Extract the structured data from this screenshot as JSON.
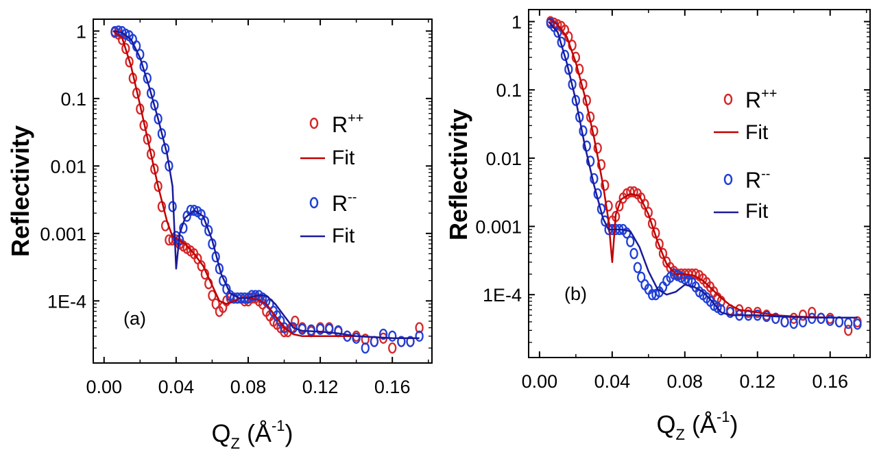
{
  "chart_data": [
    {
      "type": "scatter",
      "panel_label": "(a)",
      "xlabel_main": "Q",
      "xlabel_sub": "Z",
      "xlabel_unit": " (Å",
      "xlabel_exp": "-1",
      "xlabel_close": ")",
      "ylabel": "Reflectivity",
      "xlim": [
        -0.006,
        0.182
      ],
      "ylim": [
        1.2e-05,
        1.5
      ],
      "x_ticks": [
        0.0,
        0.04,
        0.08,
        0.12,
        0.16
      ],
      "x_tick_labels": [
        "0.00",
        "0.04",
        "0.08",
        "0.12",
        "0.16"
      ],
      "y_ticks": [
        1,
        0.1,
        0.01,
        0.001,
        0.0001
      ],
      "y_tick_labels": [
        "1",
        "0.1",
        "0.01",
        "0.001",
        "1E-4"
      ],
      "legend": [
        {
          "label": "R",
          "sup": "++",
          "kind": "marker",
          "color": "#d62728"
        },
        {
          "label": "Fit",
          "sup": "",
          "kind": "line",
          "color": "#c00000"
        },
        {
          "label": "R",
          "sup": "--",
          "kind": "marker",
          "color": "#1f3fd6"
        },
        {
          "label": "Fit",
          "sup": "",
          "kind": "line",
          "color": "#1a1a99"
        }
      ],
      "series": [
        {
          "name": "R++",
          "kind": "points",
          "color": "#d62728",
          "x": [
            0.006,
            0.008,
            0.01,
            0.012,
            0.014,
            0.016,
            0.018,
            0.02,
            0.022,
            0.024,
            0.026,
            0.028,
            0.03,
            0.032,
            0.034,
            0.036,
            0.038,
            0.04,
            0.042,
            0.044,
            0.046,
            0.048,
            0.05,
            0.052,
            0.054,
            0.056,
            0.058,
            0.06,
            0.062,
            0.064,
            0.066,
            0.068,
            0.07,
            0.072,
            0.074,
            0.076,
            0.078,
            0.08,
            0.082,
            0.084,
            0.086,
            0.088,
            0.09,
            0.092,
            0.094,
            0.096,
            0.098,
            0.1,
            0.102,
            0.104,
            0.106,
            0.11,
            0.115,
            0.12,
            0.125,
            0.13,
            0.135,
            0.14,
            0.145,
            0.15,
            0.155,
            0.16,
            0.165,
            0.17,
            0.175
          ],
          "y": [
            0.95,
            0.9,
            0.75,
            0.55,
            0.35,
            0.2,
            0.12,
            0.07,
            0.04,
            0.025,
            0.015,
            0.009,
            0.005,
            0.0025,
            0.0013,
            0.0008,
            0.0008,
            0.0008,
            0.0007,
            0.00065,
            0.0006,
            0.00055,
            0.0005,
            0.00042,
            0.00033,
            0.00025,
            0.00018,
            0.00012,
            9e-05,
            7e-05,
            8e-05,
            0.0001,
            0.00011,
            0.00011,
            0.00011,
            0.00011,
            0.0001,
            0.0001,
            0.00011,
            0.00011,
            0.0001,
            9e-05,
            7e-05,
            6e-05,
            5e-05,
            4.5e-05,
            4e-05,
            3.5e-05,
            3.5e-05,
            4e-05,
            5e-05,
            4e-05,
            3.5e-05,
            4e-05,
            4e-05,
            3.5e-05,
            3e-05,
            3e-05,
            2.7e-05,
            2.5e-05,
            2.8e-05,
            2e-05,
            2.5e-05,
            2.5e-05,
            4e-05
          ]
        },
        {
          "name": "Fit++",
          "kind": "line",
          "color": "#c00000",
          "x": [
            0.005,
            0.01,
            0.015,
            0.02,
            0.025,
            0.03,
            0.035,
            0.038,
            0.04,
            0.045,
            0.05,
            0.055,
            0.06,
            0.064,
            0.068,
            0.072,
            0.076,
            0.08,
            0.085,
            0.09,
            0.095,
            0.1,
            0.105,
            0.11,
            0.12,
            0.13,
            0.14,
            0.15,
            0.16,
            0.17,
            0.175
          ],
          "y": [
            1,
            0.8,
            0.3,
            0.08,
            0.02,
            0.005,
            0.0015,
            0.0009,
            0.00085,
            0.0007,
            0.0005,
            0.00033,
            0.00017,
            0.0001,
            9e-05,
            0.0001,
            0.00011,
            0.00011,
            0.000105,
            9e-05,
            6e-05,
            4e-05,
            3.2e-05,
            3e-05,
            3e-05,
            3e-05,
            3e-05,
            2.9e-05,
            2.8e-05,
            2.8e-05,
            2.8e-05
          ]
        },
        {
          "name": "R--",
          "kind": "points",
          "color": "#1f3fd6",
          "x": [
            0.006,
            0.008,
            0.01,
            0.012,
            0.014,
            0.016,
            0.018,
            0.02,
            0.022,
            0.024,
            0.026,
            0.028,
            0.03,
            0.032,
            0.034,
            0.036,
            0.038,
            0.04,
            0.042,
            0.044,
            0.046,
            0.048,
            0.05,
            0.052,
            0.054,
            0.056,
            0.058,
            0.06,
            0.062,
            0.064,
            0.066,
            0.068,
            0.07,
            0.072,
            0.074,
            0.076,
            0.078,
            0.08,
            0.082,
            0.084,
            0.086,
            0.088,
            0.09,
            0.092,
            0.094,
            0.096,
            0.098,
            0.1,
            0.105,
            0.11,
            0.115,
            0.12,
            0.125,
            0.13,
            0.135,
            0.14,
            0.145,
            0.15,
            0.155,
            0.16,
            0.165,
            0.17,
            0.175
          ],
          "y": [
            0.98,
            1.0,
            0.98,
            0.9,
            0.85,
            0.75,
            0.6,
            0.45,
            0.3,
            0.2,
            0.12,
            0.08,
            0.05,
            0.03,
            0.018,
            0.01,
            0.0025,
            0.0009,
            0.0008,
            0.0012,
            0.0018,
            0.0022,
            0.0022,
            0.0021,
            0.0019,
            0.0015,
            0.0011,
            0.0007,
            0.00045,
            0.0003,
            0.0002,
            0.00015,
            0.00012,
            0.00011,
            0.00011,
            0.00011,
            0.00011,
            0.00011,
            0.00012,
            0.00012,
            0.00012,
            0.00011,
            0.0001,
            9e-05,
            7e-05,
            6e-05,
            5e-05,
            4e-05,
            4e-05,
            3.8e-05,
            3.7e-05,
            3.8e-05,
            3.8e-05,
            3.6e-05,
            3e-05,
            2.8e-05,
            2e-05,
            2.5e-05,
            3.2e-05,
            3e-05,
            2.5e-05,
            2.5e-05,
            3e-05
          ]
        },
        {
          "name": "Fit--",
          "kind": "line",
          "color": "#1a1a99",
          "x": [
            0.005,
            0.01,
            0.015,
            0.02,
            0.025,
            0.03,
            0.035,
            0.038,
            0.04,
            0.042,
            0.045,
            0.05,
            0.055,
            0.06,
            0.065,
            0.07,
            0.075,
            0.08,
            0.085,
            0.09,
            0.095,
            0.1,
            0.105,
            0.11,
            0.12,
            0.13,
            0.14,
            0.15,
            0.16,
            0.17,
            0.175
          ],
          "y": [
            1,
            0.95,
            0.75,
            0.4,
            0.15,
            0.05,
            0.015,
            0.005,
            0.0003,
            0.001,
            0.0017,
            0.0022,
            0.0018,
            0.0008,
            0.00025,
            0.00013,
            0.00011,
            0.00011,
            0.00012,
            0.00012,
            9e-05,
            6e-05,
            4e-05,
            3.6e-05,
            3.5e-05,
            3.3e-05,
            3e-05,
            2.9e-05,
            2.8e-05,
            2.8e-05,
            2.8e-05
          ]
        }
      ]
    },
    {
      "type": "scatter",
      "panel_label": "(b)",
      "xlabel_main": "Q",
      "xlabel_sub": "Z",
      "xlabel_unit": " (Å",
      "xlabel_exp": "-1",
      "xlabel_close": ")",
      "ylabel": "Reflectivity",
      "xlim": [
        -0.006,
        0.182
      ],
      "ylim": [
        1.2e-05,
        1.5
      ],
      "x_ticks": [
        0.0,
        0.04,
        0.08,
        0.12,
        0.16
      ],
      "x_tick_labels": [
        "0.00",
        "0.04",
        "0.08",
        "0.12",
        "0.16"
      ],
      "y_ticks": [
        1,
        0.1,
        0.01,
        0.001,
        0.0001
      ],
      "y_tick_labels": [
        "1",
        "0.1",
        "0.01",
        "0.001",
        "1E-4"
      ],
      "legend": [
        {
          "label": "R",
          "sup": "++",
          "kind": "marker",
          "color": "#d62728"
        },
        {
          "label": "Fit",
          "sup": "",
          "kind": "line",
          "color": "#c00000"
        },
        {
          "label": "R",
          "sup": "--",
          "kind": "marker",
          "color": "#1f3fd6"
        },
        {
          "label": "Fit",
          "sup": "",
          "kind": "line",
          "color": "#1a1a99"
        }
      ],
      "series": [
        {
          "name": "R++",
          "kind": "points",
          "color": "#d62728",
          "x": [
            0.006,
            0.008,
            0.01,
            0.012,
            0.014,
            0.016,
            0.018,
            0.02,
            0.022,
            0.024,
            0.026,
            0.028,
            0.03,
            0.032,
            0.034,
            0.036,
            0.038,
            0.04,
            0.042,
            0.044,
            0.046,
            0.048,
            0.05,
            0.052,
            0.054,
            0.056,
            0.058,
            0.06,
            0.062,
            0.064,
            0.066,
            0.068,
            0.07,
            0.072,
            0.074,
            0.076,
            0.078,
            0.08,
            0.082,
            0.084,
            0.086,
            0.088,
            0.09,
            0.092,
            0.094,
            0.096,
            0.098,
            0.1,
            0.105,
            0.11,
            0.115,
            0.12,
            0.125,
            0.13,
            0.135,
            0.14,
            0.145,
            0.15,
            0.155,
            0.16,
            0.165,
            0.17,
            0.175
          ],
          "y": [
            1.0,
            0.95,
            0.9,
            0.85,
            0.75,
            0.6,
            0.45,
            0.3,
            0.2,
            0.12,
            0.07,
            0.04,
            0.025,
            0.014,
            0.008,
            0.004,
            0.002,
            0.0012,
            0.0014,
            0.002,
            0.0026,
            0.003,
            0.0032,
            0.0032,
            0.003,
            0.0026,
            0.0021,
            0.0016,
            0.0011,
            0.0008,
            0.00055,
            0.0004,
            0.0003,
            0.00025,
            0.00022,
            0.0002,
            0.0002,
            0.0002,
            0.0002,
            0.0002,
            0.0002,
            0.00019,
            0.00017,
            0.00015,
            0.00013,
            0.00011,
            9e-05,
            8e-05,
            6e-05,
            6e-05,
            5.5e-05,
            5.5e-05,
            5e-05,
            4.5e-05,
            4e-05,
            4.5e-05,
            5e-05,
            5.5e-05,
            4.5e-05,
            4.5e-05,
            4e-05,
            3e-05,
            4e-05
          ]
        },
        {
          "name": "Fit++",
          "kind": "line",
          "color": "#c00000",
          "x": [
            0.005,
            0.01,
            0.015,
            0.02,
            0.025,
            0.03,
            0.035,
            0.038,
            0.04,
            0.042,
            0.045,
            0.05,
            0.055,
            0.06,
            0.065,
            0.07,
            0.075,
            0.08,
            0.085,
            0.09,
            0.095,
            0.1,
            0.105,
            0.11,
            0.12,
            0.13,
            0.14,
            0.15,
            0.16,
            0.17,
            0.175
          ],
          "y": [
            1.1,
            0.9,
            0.6,
            0.25,
            0.08,
            0.02,
            0.004,
            0.0012,
            0.0003,
            0.0015,
            0.0025,
            0.003,
            0.0028,
            0.0015,
            0.0006,
            0.00028,
            0.0002,
            0.0002,
            0.00019,
            0.00016,
            0.00012,
            9e-05,
            7e-05,
            6e-05,
            5.5e-05,
            5e-05,
            4.8e-05,
            4.7e-05,
            4.6e-05,
            4.6e-05,
            4.6e-05
          ]
        },
        {
          "name": "R--",
          "kind": "points",
          "color": "#1f3fd6",
          "x": [
            0.006,
            0.008,
            0.01,
            0.012,
            0.014,
            0.016,
            0.018,
            0.02,
            0.022,
            0.024,
            0.026,
            0.028,
            0.03,
            0.032,
            0.034,
            0.036,
            0.038,
            0.04,
            0.042,
            0.044,
            0.046,
            0.048,
            0.05,
            0.052,
            0.054,
            0.056,
            0.058,
            0.06,
            0.062,
            0.064,
            0.066,
            0.068,
            0.07,
            0.072,
            0.074,
            0.076,
            0.078,
            0.08,
            0.082,
            0.084,
            0.086,
            0.088,
            0.09,
            0.092,
            0.094,
            0.096,
            0.098,
            0.1,
            0.105,
            0.11,
            0.115,
            0.12,
            0.125,
            0.13,
            0.135,
            0.14,
            0.145,
            0.15,
            0.155,
            0.16,
            0.165,
            0.17,
            0.175
          ],
          "y": [
            0.95,
            0.85,
            0.7,
            0.5,
            0.32,
            0.2,
            0.12,
            0.07,
            0.04,
            0.025,
            0.015,
            0.009,
            0.005,
            0.003,
            0.0018,
            0.0012,
            0.0009,
            0.0009,
            0.0009,
            0.0009,
            0.0009,
            0.0008,
            0.0006,
            0.0004,
            0.00025,
            0.00018,
            0.00014,
            0.00012,
            0.0001,
            0.0001,
            0.00011,
            0.00013,
            0.00016,
            0.00018,
            0.0002,
            0.00019,
            0.00018,
            0.00017,
            0.00016,
            0.00015,
            0.00013,
            0.00011,
            0.0001,
            9e-05,
            8e-05,
            7e-05,
            6.5e-05,
            6e-05,
            5.5e-05,
            5e-05,
            5e-05,
            5e-05,
            4.8e-05,
            4.5e-05,
            4e-05,
            3.8e-05,
            4e-05,
            4.5e-05,
            4.5e-05,
            4.2e-05,
            4e-05,
            3.8e-05,
            3.7e-05
          ]
        },
        {
          "name": "Fit--",
          "kind": "line",
          "color": "#1a1a99",
          "x": [
            0.005,
            0.01,
            0.015,
            0.02,
            0.025,
            0.03,
            0.035,
            0.038,
            0.04,
            0.045,
            0.05,
            0.055,
            0.06,
            0.065,
            0.07,
            0.075,
            0.08,
            0.085,
            0.09,
            0.095,
            0.1,
            0.105,
            0.11,
            0.12,
            0.13,
            0.14,
            0.15,
            0.16,
            0.17,
            0.175
          ],
          "y": [
            1,
            0.7,
            0.25,
            0.07,
            0.015,
            0.004,
            0.0013,
            0.0009,
            0.0009,
            0.0009,
            0.00085,
            0.0005,
            0.00022,
            0.00012,
            0.0001,
            0.00011,
            0.00014,
            0.00013,
            0.00011,
            8e-05,
            5.5e-05,
            5e-05,
            5e-05,
            5e-05,
            4.8e-05,
            4.7e-05,
            4.6e-05,
            4.6e-05,
            4.6e-05,
            4.6e-05
          ]
        }
      ]
    }
  ]
}
